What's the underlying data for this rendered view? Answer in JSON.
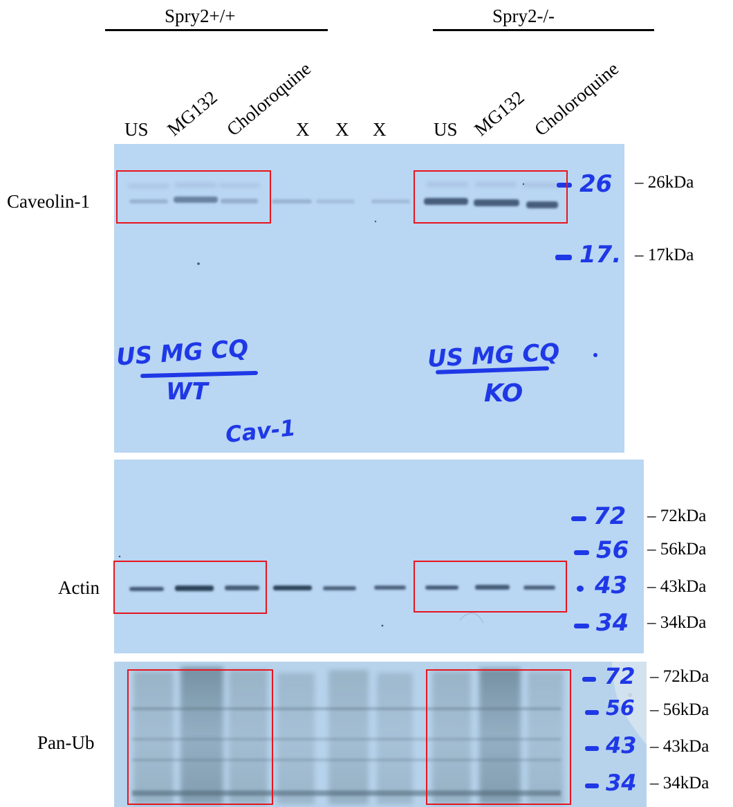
{
  "groups": [
    {
      "title": "Spry2+/+"
    },
    {
      "title": "Spry2-/-"
    }
  ],
  "lanes": {
    "wt_us": "US",
    "wt_mg132": "MG132",
    "wt_chloroquine": "Choloroquine",
    "x1": "X",
    "x2": "X",
    "x3": "X",
    "ko_us": "US",
    "ko_mg132": "MG132",
    "ko_chloroquine": "Choloroquine"
  },
  "rows": {
    "caveolin": "Caveolin-1",
    "actin": "Actin",
    "panub": "Pan-Ub"
  },
  "markers": {
    "caveolin": [
      "26kDa",
      "17kDa"
    ],
    "actin": [
      "72kDa",
      "56kDa",
      "43kDa",
      "34kDa"
    ],
    "panub": [
      "72kDa",
      "56kDa",
      "43kDa",
      "34kDa"
    ]
  },
  "handwriting": {
    "wt_lanes": "US MG CQ",
    "wt_label": "WT",
    "cav": "Cav-1",
    "ko_lanes": "US MG CQ",
    "ko_label": "KO",
    "m26": "26",
    "m17": "17.",
    "m72": "72",
    "m56": "56",
    "m43": "43",
    "m34": "34",
    "p72": "72",
    "p56": "56",
    "p43": "43",
    "p34": "34"
  },
  "colors": {
    "membrane": "#b8d6f3",
    "box": "#e8141c",
    "marker_ink": "#1f38e6"
  }
}
